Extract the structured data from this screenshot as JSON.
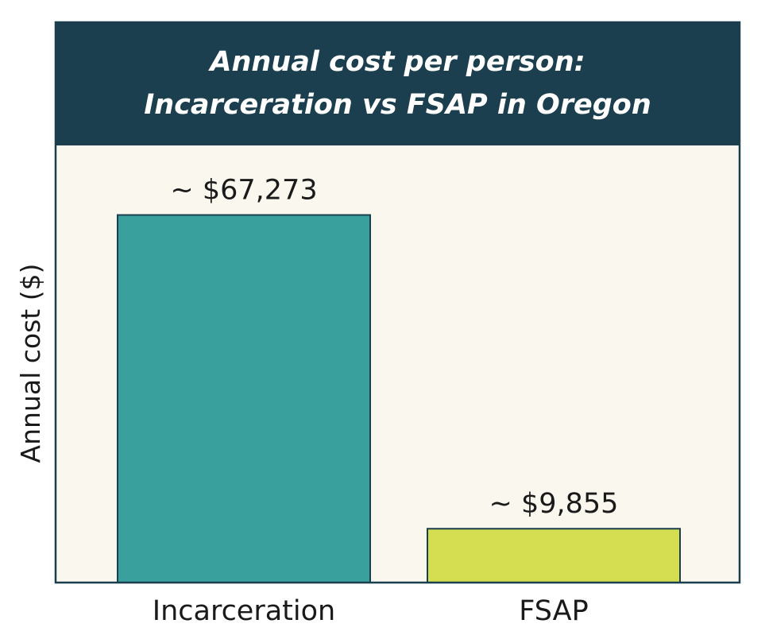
{
  "chart_data": {
    "type": "bar",
    "title": [
      "Annual cost per person:",
      "Incarceration vs FSAP in Oregon"
    ],
    "xlabel": "",
    "ylabel": "Annual cost ($)",
    "ylim": [
      0,
      80000
    ],
    "grid": false,
    "categories": [
      "Incarceration",
      "FSAP"
    ],
    "values": [
      67273,
      9855
    ],
    "value_labels": [
      "~ $67,273",
      "~ $9,855"
    ],
    "colors": {
      "bars": [
        "#3aa09d",
        "#d4de50"
      ],
      "title_band": "#1b3f4e",
      "plot_background": "#faf8ee",
      "frame": "#1b3f4e",
      "bar_outline": "#1b3f4e"
    }
  }
}
